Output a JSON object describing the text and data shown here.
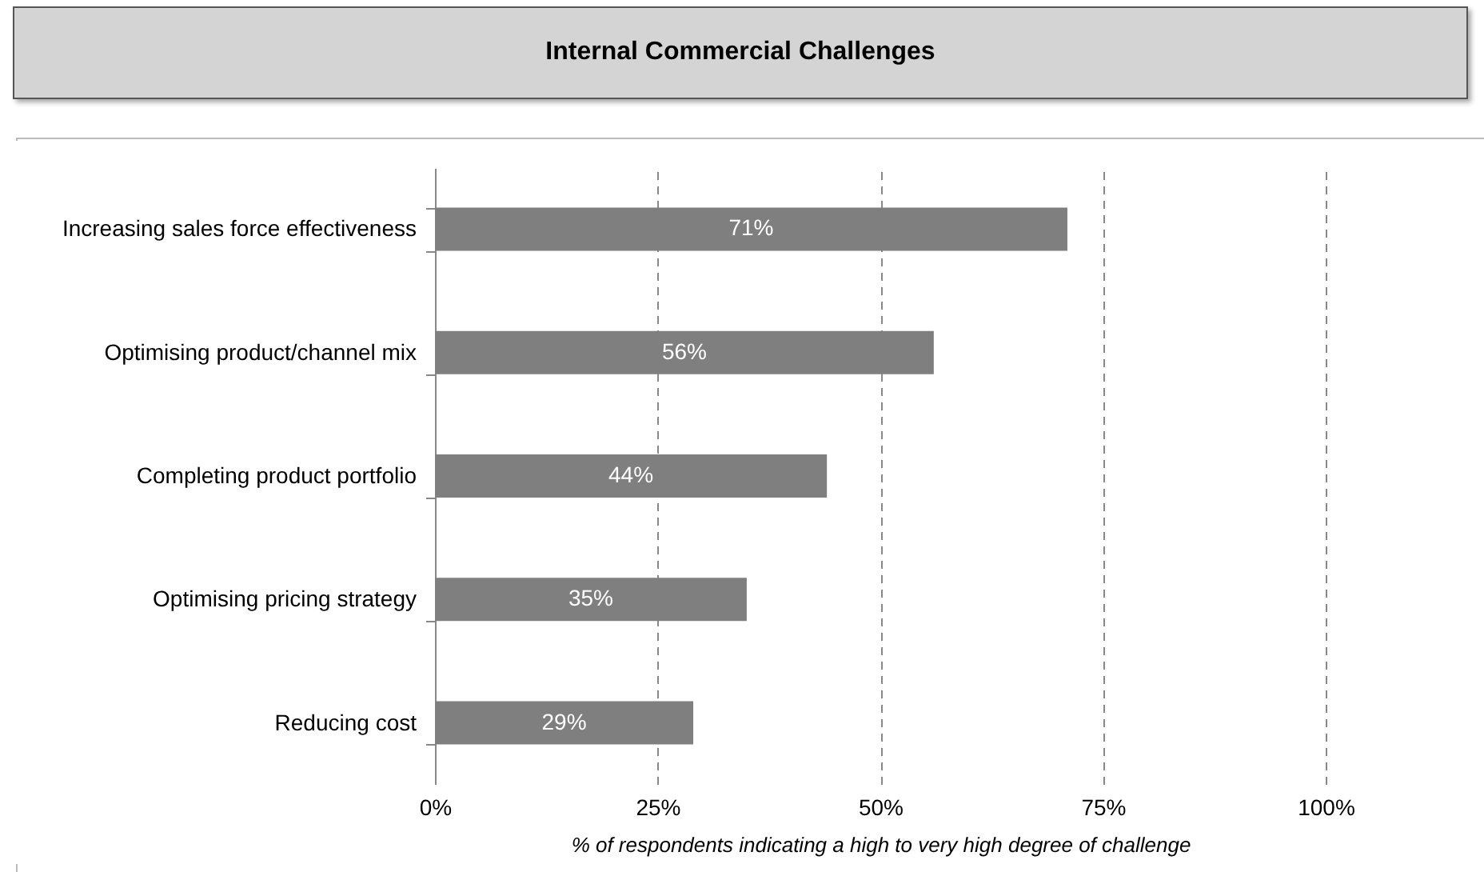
{
  "chart_data": {
    "type": "bar",
    "orientation": "horizontal",
    "title": "Internal Commercial Challenges",
    "xlabel": "% of respondents indicating a high to very high degree of challenge",
    "categories": [
      "Increasing sales force effectiveness",
      "Optimising product/channel mix ",
      "Completing  product portfolio",
      "Optimising pricing strategy",
      "Reducing cost"
    ],
    "values": [
      71,
      56,
      44,
      35,
      29
    ],
    "value_labels": [
      "71%",
      "56%",
      "44%",
      "35%",
      "29%"
    ],
    "color": "#7f7f7f",
    "xlim": [
      0,
      100
    ],
    "xticks": [
      {
        "value": 0,
        "label": "0%"
      },
      {
        "value": 25,
        "label": "25%"
      },
      {
        "value": 50,
        "label": "50%"
      },
      {
        "value": 75,
        "label": "75%"
      },
      {
        "value": 100,
        "label": "100%"
      }
    ],
    "grid": "x",
    "line_style": "dashed"
  }
}
